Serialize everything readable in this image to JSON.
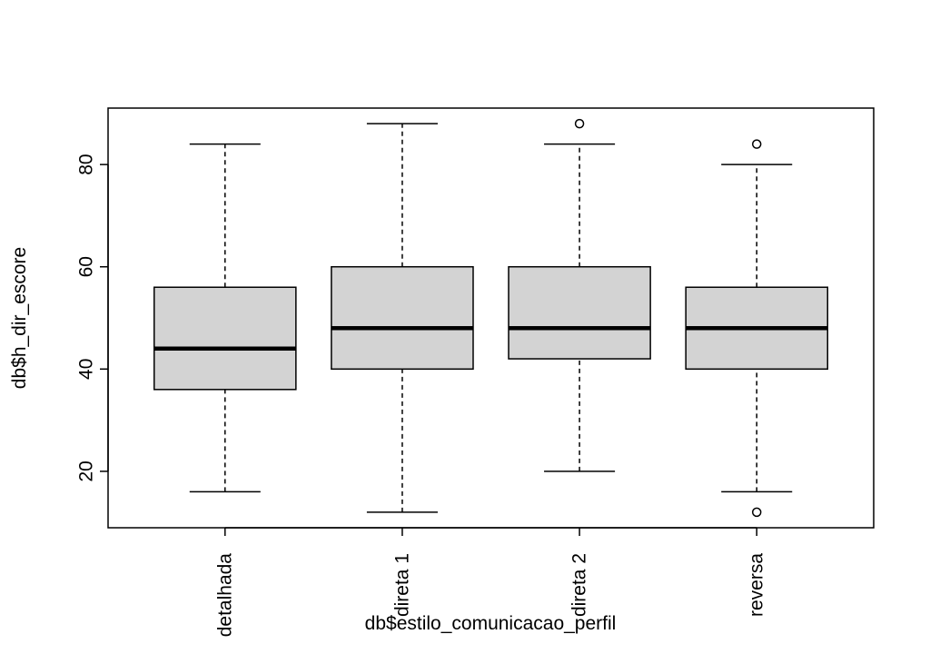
{
  "chart_data": {
    "type": "boxplot",
    "categories": [
      "detalhada",
      "direta 1",
      "direta 2",
      "reversa"
    ],
    "min": [
      16,
      12,
      20,
      16
    ],
    "q1": [
      36,
      40,
      42,
      40
    ],
    "median": [
      44,
      48,
      48,
      48
    ],
    "q3": [
      56,
      60,
      60,
      56
    ],
    "max": [
      84,
      88,
      84,
      80
    ],
    "outliers": [
      [],
      [],
      [
        88
      ],
      [
        84,
        12
      ]
    ],
    "color": "#d3d3d3",
    "x_label": "db$estilo_comunicacao_perfil",
    "y_label": "db$h_dir_escore",
    "ylim": [
      8.96,
      91.04
    ],
    "yticks": [
      20,
      40,
      60,
      80
    ]
  }
}
